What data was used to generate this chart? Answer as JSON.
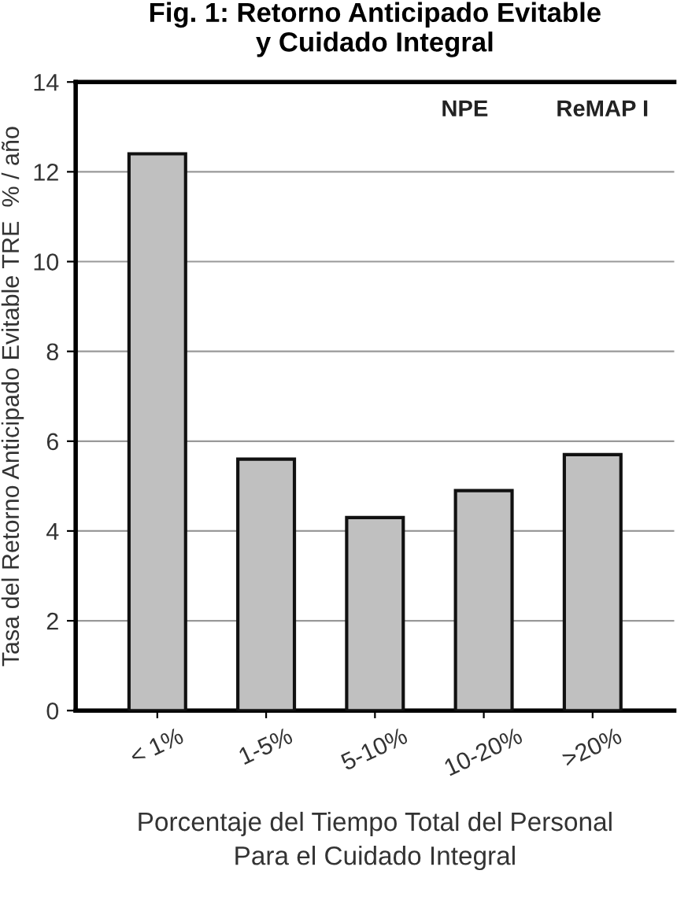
{
  "chart_data": {
    "type": "bar",
    "title": "Fig. 1: Retorno Anticipado Evitable\ny Cuidado Integral",
    "categories": [
      "< 1%",
      "1-5%",
      "5-10%",
      "10-20%",
      ">20%"
    ],
    "values": [
      12.4,
      5.6,
      4.3,
      4.9,
      5.7
    ],
    "color": "#c0c0c0",
    "xlabel": "Porcentaje del Tiempo Total del Personal\nPara el Cuidado Integral",
    "ylabel": "Tasa del Retorno Anticipado Evitable TRE  % / año",
    "ylim": [
      0,
      14
    ],
    "yticks": [
      0,
      2,
      4,
      6,
      8,
      10,
      12,
      14
    ],
    "annotations": [
      "NPE",
      "ReMAP I"
    ],
    "grid": "y",
    "legend": false
  }
}
